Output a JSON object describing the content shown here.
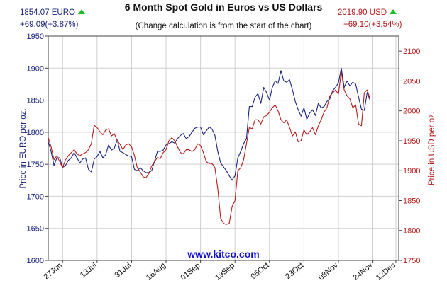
{
  "header": {
    "eur_price": "1854.07 EURO",
    "eur_change": "+69.09(+3.87%)",
    "usd_price": "2019.90 USD",
    "usd_change": "+69.10(+3.54%)",
    "up_icon": "triangle-up-icon",
    "colors": {
      "eur": "#1a237e",
      "usd": "#b71c1c",
      "up": "#1bbd27"
    }
  },
  "chart_data": {
    "type": "line",
    "title": "6 Month Spot Gold in Euros vs US Dollars",
    "subtitle": "(Change calculation is from the start of the chart)",
    "watermark": "www.kitco.com",
    "ylabel_left": "Price in EURO per oz.",
    "ylabel_right": "Price in USD per oz.",
    "ylim_left": [
      1600,
      1950
    ],
    "yticks_left": [
      1600,
      1650,
      1700,
      1750,
      1800,
      1850,
      1900,
      1950
    ],
    "ylim_right": [
      1750,
      2125
    ],
    "yticks_right": [
      1750,
      1800,
      1850,
      1900,
      1950,
      2000,
      2050,
      2100
    ],
    "xlim": [
      0,
      122
    ],
    "xticks": [
      {
        "label": "27Jun",
        "x": 5
      },
      {
        "label": "13Jul",
        "x": 17
      },
      {
        "label": "31Jul",
        "x": 29
      },
      {
        "label": "16Aug",
        "x": 41
      },
      {
        "label": "01Sep",
        "x": 53
      },
      {
        "label": "19Sep",
        "x": 65
      },
      {
        "label": "05Oct",
        "x": 77
      },
      {
        "label": "23Oct",
        "x": 89
      },
      {
        "label": "08Nov",
        "x": 101
      },
      {
        "label": "24Nov",
        "x": 113
      },
      {
        "label": "12Dec",
        "x": 121
      }
    ],
    "grid": true,
    "series": [
      {
        "name": "EURO",
        "axis": "left",
        "color": "#1a237e",
        "points": [
          [
            0,
            1785
          ],
          [
            1,
            1770
          ],
          [
            2,
            1748
          ],
          [
            3,
            1760
          ],
          [
            4,
            1760
          ],
          [
            5,
            1745
          ],
          [
            6,
            1748
          ],
          [
            7,
            1756
          ],
          [
            8,
            1760
          ],
          [
            9,
            1768
          ],
          [
            10,
            1760
          ],
          [
            11,
            1752
          ],
          [
            12,
            1758
          ],
          [
            13,
            1760
          ],
          [
            14,
            1742
          ],
          [
            15,
            1738
          ],
          [
            16,
            1758
          ],
          [
            17,
            1762
          ],
          [
            18,
            1770
          ],
          [
            19,
            1760
          ],
          [
            20,
            1765
          ],
          [
            21,
            1780
          ],
          [
            22,
            1772
          ],
          [
            23,
            1775
          ],
          [
            24,
            1788
          ],
          [
            25,
            1770
          ],
          [
            26,
            1768
          ],
          [
            27,
            1765
          ],
          [
            28,
            1763
          ],
          [
            29,
            1762
          ],
          [
            30,
            1742
          ],
          [
            31,
            1740
          ],
          [
            32,
            1745
          ],
          [
            33,
            1740
          ],
          [
            34,
            1737
          ],
          [
            35,
            1737
          ],
          [
            36,
            1740
          ],
          [
            37,
            1755
          ],
          [
            38,
            1770
          ],
          [
            39,
            1770
          ],
          [
            40,
            1772
          ],
          [
            41,
            1780
          ],
          [
            42,
            1782
          ],
          [
            43,
            1785
          ],
          [
            44,
            1783
          ],
          [
            45,
            1790
          ],
          [
            46,
            1795
          ],
          [
            47,
            1798
          ],
          [
            48,
            1790
          ],
          [
            49,
            1793
          ],
          [
            50,
            1800
          ],
          [
            51,
            1806
          ],
          [
            52,
            1808
          ],
          [
            53,
            1808
          ],
          [
            54,
            1796
          ],
          [
            55,
            1802
          ],
          [
            56,
            1808
          ],
          [
            57,
            1805
          ],
          [
            58,
            1795
          ],
          [
            59,
            1770
          ],
          [
            60,
            1752
          ],
          [
            61,
            1746
          ],
          [
            62,
            1740
          ],
          [
            63,
            1732
          ],
          [
            64,
            1725
          ],
          [
            65,
            1732
          ],
          [
            66,
            1760
          ],
          [
            67,
            1770
          ],
          [
            68,
            1782
          ],
          [
            69,
            1790
          ],
          [
            70,
            1840
          ],
          [
            71,
            1840
          ],
          [
            72,
            1855
          ],
          [
            73,
            1860
          ],
          [
            74,
            1845
          ],
          [
            75,
            1870
          ],
          [
            76,
            1862
          ],
          [
            77,
            1850
          ],
          [
            78,
            1870
          ],
          [
            79,
            1880
          ],
          [
            80,
            1876
          ],
          [
            81,
            1896
          ],
          [
            82,
            1880
          ],
          [
            83,
            1878
          ],
          [
            84,
            1882
          ],
          [
            85,
            1866
          ],
          [
            86,
            1848
          ],
          [
            87,
            1835
          ],
          [
            88,
            1825
          ],
          [
            89,
            1838
          ],
          [
            90,
            1820
          ],
          [
            91,
            1830
          ],
          [
            92,
            1835
          ],
          [
            93,
            1826
          ],
          [
            94,
            1845
          ],
          [
            95,
            1838
          ],
          [
            96,
            1840
          ],
          [
            97,
            1848
          ],
          [
            98,
            1852
          ],
          [
            99,
            1865
          ],
          [
            100,
            1870
          ],
          [
            101,
            1877
          ],
          [
            102,
            1900
          ],
          [
            103,
            1870
          ],
          [
            104,
            1880
          ],
          [
            105,
            1872
          ],
          [
            106,
            1878
          ],
          [
            107,
            1875
          ],
          [
            108,
            1855
          ],
          [
            109,
            1836
          ],
          [
            110,
            1834
          ],
          [
            111,
            1862
          ],
          [
            112,
            1850
          ]
        ]
      },
      {
        "name": "USD",
        "axis": "right",
        "color": "#b71c1c",
        "points": [
          [
            0,
            1955
          ],
          [
            1,
            1940
          ],
          [
            2,
            1918
          ],
          [
            3,
            1925
          ],
          [
            4,
            1915
          ],
          [
            5,
            1905
          ],
          [
            6,
            1918
          ],
          [
            7,
            1925
          ],
          [
            8,
            1930
          ],
          [
            9,
            1935
          ],
          [
            10,
            1928
          ],
          [
            11,
            1925
          ],
          [
            12,
            1928
          ],
          [
            13,
            1930
          ],
          [
            14,
            1935
          ],
          [
            15,
            1945
          ],
          [
            16,
            1976
          ],
          [
            17,
            1972
          ],
          [
            18,
            1965
          ],
          [
            19,
            1960
          ],
          [
            20,
            1968
          ],
          [
            21,
            1970
          ],
          [
            22,
            1958
          ],
          [
            23,
            1962
          ],
          [
            24,
            1950
          ],
          [
            25,
            1944
          ],
          [
            26,
            1935
          ],
          [
            27,
            1943
          ],
          [
            28,
            1945
          ],
          [
            29,
            1940
          ],
          [
            30,
            1925
          ],
          [
            31,
            1905
          ],
          [
            32,
            1898
          ],
          [
            33,
            1890
          ],
          [
            34,
            1888
          ],
          [
            35,
            1895
          ],
          [
            36,
            1908
          ],
          [
            37,
            1915
          ],
          [
            38,
            1922
          ],
          [
            39,
            1920
          ],
          [
            40,
            1930
          ],
          [
            41,
            1935
          ],
          [
            42,
            1950
          ],
          [
            43,
            1955
          ],
          [
            44,
            1950
          ],
          [
            45,
            1940
          ],
          [
            46,
            1930
          ],
          [
            47,
            1928
          ],
          [
            48,
            1935
          ],
          [
            49,
            1935
          ],
          [
            50,
            1932
          ],
          [
            51,
            1935
          ],
          [
            52,
            1945
          ],
          [
            53,
            1942
          ],
          [
            54,
            1930
          ],
          [
            55,
            1915
          ],
          [
            56,
            1912
          ],
          [
            57,
            1912
          ],
          [
            58,
            1905
          ],
          [
            59,
            1870
          ],
          [
            60,
            1820
          ],
          [
            61,
            1812
          ],
          [
            62,
            1810
          ],
          [
            63,
            1812
          ],
          [
            64,
            1840
          ],
          [
            65,
            1850
          ],
          [
            66,
            1900
          ],
          [
            67,
            1905
          ],
          [
            68,
            1918
          ],
          [
            69,
            1945
          ],
          [
            70,
            1972
          ],
          [
            71,
            1970
          ],
          [
            72,
            1985
          ],
          [
            73,
            1985
          ],
          [
            74,
            1978
          ],
          [
            75,
            1990
          ],
          [
            76,
            1992
          ],
          [
            77,
            1998
          ],
          [
            78,
            2005
          ],
          [
            79,
            2010
          ],
          [
            80,
            2000
          ],
          [
            81,
            1985
          ],
          [
            82,
            1980
          ],
          [
            83,
            1985
          ],
          [
            84,
            1972
          ],
          [
            85,
            1958
          ],
          [
            86,
            1965
          ],
          [
            87,
            1948
          ],
          [
            88,
            1950
          ],
          [
            89,
            1968
          ],
          [
            90,
            1960
          ],
          [
            91,
            1965
          ],
          [
            92,
            1972
          ],
          [
            93,
            1960
          ],
          [
            94,
            1975
          ],
          [
            95,
            1985
          ],
          [
            96,
            1998
          ],
          [
            97,
            2005
          ],
          [
            98,
            2025
          ],
          [
            99,
            2030
          ],
          [
            100,
            2035
          ],
          [
            101,
            2028
          ],
          [
            102,
            2065
          ],
          [
            103,
            2035
          ],
          [
            104,
            2025
          ],
          [
            105,
            2020
          ],
          [
            106,
            2005
          ],
          [
            107,
            2010
          ],
          [
            108,
            1978
          ],
          [
            109,
            1975
          ],
          [
            110,
            2030
          ],
          [
            111,
            2035
          ],
          [
            112,
            2020
          ]
        ]
      }
    ]
  }
}
